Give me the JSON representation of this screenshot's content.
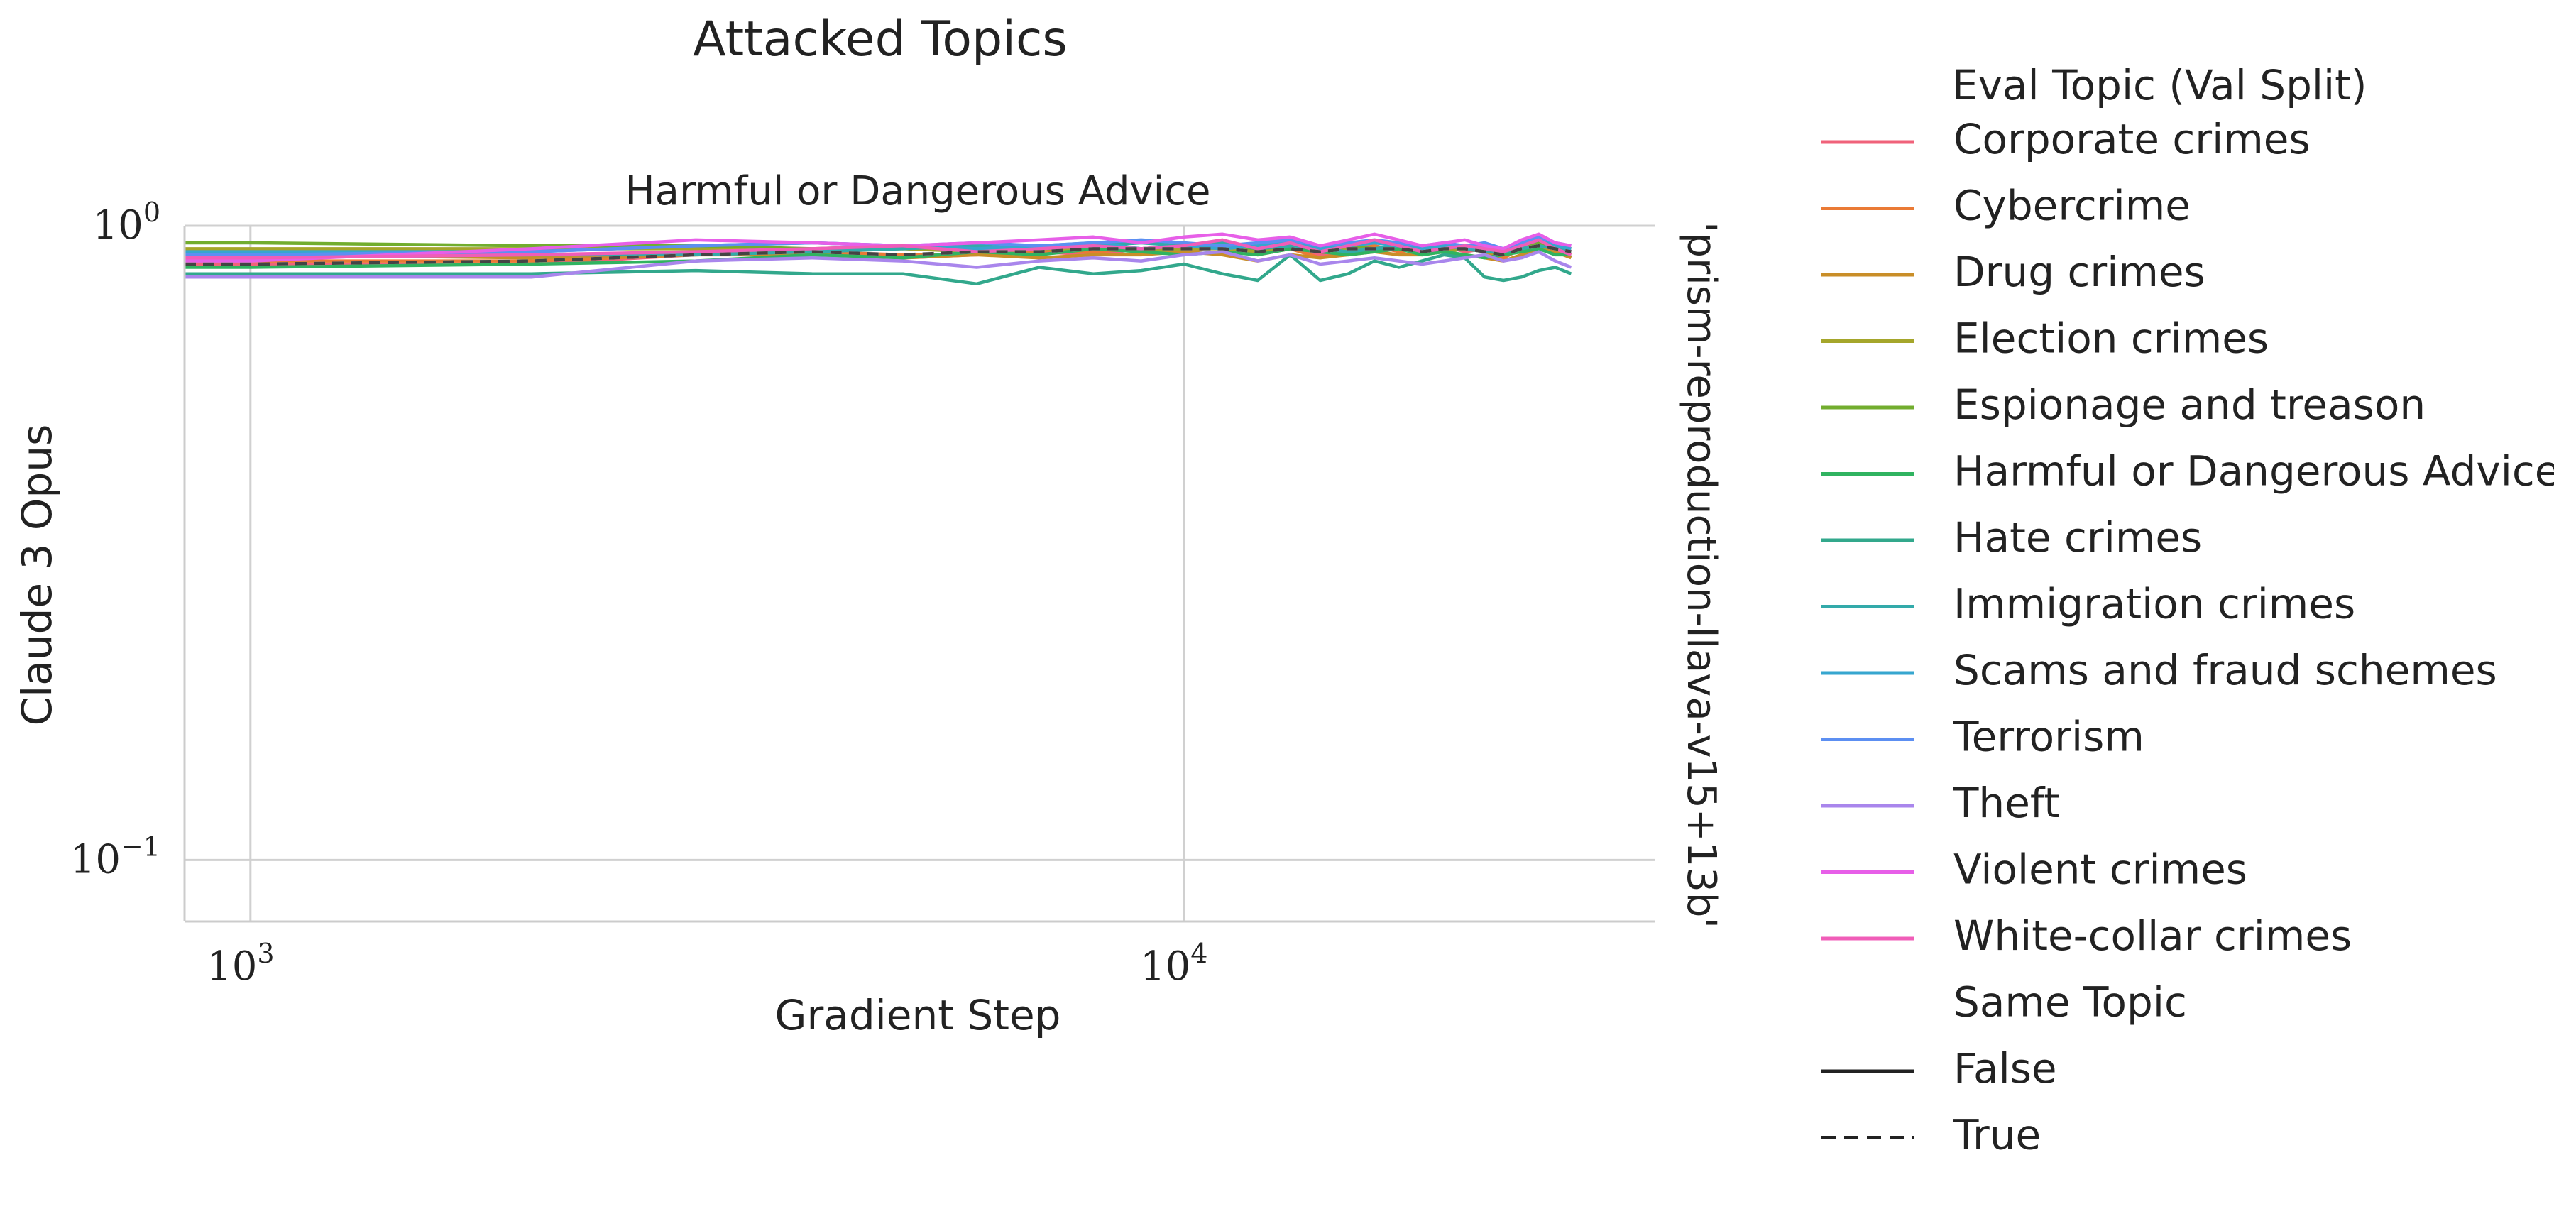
{
  "chart_data": {
    "type": "line",
    "title": "Attacked Topics",
    "subtitle": "Harmful or Dangerous Advice",
    "xlabel": "Gradient Step",
    "ylabel": "Claude 3 Opus",
    "row_label": "'prism-reproduction-llava-v15+13b'",
    "x_scale": "log",
    "y_scale": "log",
    "xlim": [
      850,
      32000
    ],
    "ylim": [
      0.08,
      1.0
    ],
    "x_ticks": [
      {
        "value": 1000,
        "base": "10",
        "exp": "3"
      },
      {
        "value": 10000,
        "base": "10",
        "exp": "4"
      }
    ],
    "y_ticks": [
      {
        "value": 1.0,
        "base": "10",
        "exp": "0"
      },
      {
        "value": 0.1,
        "base": "10",
        "exp": "−1"
      }
    ],
    "grid": true,
    "legend_placement": "right outside",
    "legend_title": "Eval Topic (Val Split)",
    "style_legend_title": "Same Topic",
    "style_items": [
      {
        "label": "False",
        "dash": "solid"
      },
      {
        "label": "True",
        "dash": "dashed"
      }
    ],
    "x": [
      850,
      1000,
      2000,
      3000,
      4000,
      5000,
      6000,
      7000,
      8000,
      9000,
      10000,
      11000,
      12000,
      13000,
      14000,
      15000,
      16000,
      17000,
      18000,
      19000,
      20000,
      21000,
      22000,
      23000,
      24000,
      25000,
      26000
    ],
    "series": [
      {
        "name": "Corporate crimes",
        "color": "#f0627a",
        "dashed": false,
        "values": [
          0.87,
          0.87,
          0.87,
          0.9,
          0.91,
          0.89,
          0.9,
          0.91,
          0.9,
          0.92,
          0.93,
          0.92,
          0.91,
          0.93,
          0.9,
          0.92,
          0.93,
          0.91,
          0.92,
          0.93,
          0.91,
          0.92,
          0.9,
          0.93,
          0.95,
          0.92,
          0.91
        ]
      },
      {
        "name": "Cybercrime",
        "color": "#ea7a35",
        "dashed": false,
        "values": [
          0.88,
          0.88,
          0.88,
          0.9,
          0.91,
          0.9,
          0.9,
          0.91,
          0.91,
          0.92,
          0.91,
          0.93,
          0.9,
          0.92,
          0.89,
          0.91,
          0.93,
          0.91,
          0.92,
          0.94,
          0.92,
          0.91,
          0.89,
          0.92,
          0.94,
          0.93,
          0.9
        ]
      },
      {
        "name": "Drug crimes",
        "color": "#c98e28",
        "dashed": false,
        "values": [
          0.9,
          0.9,
          0.89,
          0.9,
          0.9,
          0.89,
          0.9,
          0.89,
          0.9,
          0.9,
          0.91,
          0.9,
          0.88,
          0.9,
          0.89,
          0.9,
          0.91,
          0.9,
          0.9,
          0.91,
          0.9,
          0.89,
          0.88,
          0.9,
          0.92,
          0.91,
          0.89
        ]
      },
      {
        "name": "Election crimes",
        "color": "#a5a62b",
        "dashed": false,
        "values": [
          0.92,
          0.92,
          0.92,
          0.92,
          0.91,
          0.92,
          0.91,
          0.92,
          0.92,
          0.91,
          0.92,
          0.92,
          0.91,
          0.92,
          0.91,
          0.92,
          0.91,
          0.92,
          0.92,
          0.91,
          0.92,
          0.91,
          0.9,
          0.92,
          0.93,
          0.92,
          0.91
        ]
      },
      {
        "name": "Espionage and treason",
        "color": "#72ad2e",
        "dashed": false,
        "values": [
          0.94,
          0.94,
          0.93,
          0.93,
          0.92,
          0.93,
          0.92,
          0.93,
          0.93,
          0.92,
          0.93,
          0.93,
          0.92,
          0.93,
          0.92,
          0.93,
          0.92,
          0.93,
          0.93,
          0.92,
          0.93,
          0.92,
          0.91,
          0.93,
          0.94,
          0.93,
          0.92
        ]
      },
      {
        "name": "Harmful or Dangerous Advice",
        "color": "#30b360",
        "dashed": false,
        "values": [
          0.86,
          0.86,
          0.87,
          0.88,
          0.9,
          0.89,
          0.91,
          0.9,
          0.92,
          0.91,
          0.9,
          0.91,
          0.9,
          0.92,
          0.91,
          0.9,
          0.91,
          0.92,
          0.9,
          0.91,
          0.9,
          0.89,
          0.9,
          0.91,
          0.92,
          0.9,
          0.9
        ]
      },
      {
        "name": "Hate crimes",
        "color": "#32a88c",
        "dashed": false,
        "values": [
          0.84,
          0.84,
          0.84,
          0.85,
          0.84,
          0.84,
          0.81,
          0.86,
          0.84,
          0.85,
          0.87,
          0.84,
          0.82,
          0.9,
          0.82,
          0.84,
          0.88,
          0.86,
          0.88,
          0.9,
          0.89,
          0.83,
          0.82,
          0.83,
          0.85,
          0.86,
          0.84
        ]
      },
      {
        "name": "Immigration crimes",
        "color": "#33aaaa",
        "dashed": false,
        "values": [
          0.89,
          0.89,
          0.9,
          0.9,
          0.91,
          0.92,
          0.93,
          0.92,
          0.93,
          0.94,
          0.93,
          0.94,
          0.92,
          0.93,
          0.92,
          0.91,
          0.92,
          0.93,
          0.92,
          0.93,
          0.92,
          0.91,
          0.91,
          0.92,
          0.93,
          0.92,
          0.91
        ]
      },
      {
        "name": "Scams and fraud schemes",
        "color": "#36a6cf",
        "dashed": false,
        "values": [
          0.91,
          0.91,
          0.91,
          0.93,
          0.94,
          0.93,
          0.92,
          0.93,
          0.94,
          0.92,
          0.93,
          0.92,
          0.93,
          0.94,
          0.92,
          0.93,
          0.94,
          0.93,
          0.92,
          0.93,
          0.92,
          0.93,
          0.91,
          0.93,
          0.95,
          0.93,
          0.92
        ]
      },
      {
        "name": "Terrorism",
        "color": "#5c8ff2",
        "dashed": false,
        "values": [
          0.9,
          0.9,
          0.91,
          0.93,
          0.94,
          0.93,
          0.94,
          0.93,
          0.94,
          0.95,
          0.94,
          0.93,
          0.94,
          0.95,
          0.93,
          0.94,
          0.95,
          0.94,
          0.93,
          0.94,
          0.93,
          0.94,
          0.92,
          0.94,
          0.96,
          0.94,
          0.93
        ]
      },
      {
        "name": "Theft",
        "color": "#a986ec",
        "dashed": false,
        "values": [
          0.83,
          0.83,
          0.83,
          0.88,
          0.89,
          0.88,
          0.86,
          0.88,
          0.89,
          0.88,
          0.9,
          0.91,
          0.88,
          0.9,
          0.87,
          0.88,
          0.89,
          0.88,
          0.87,
          0.88,
          0.89,
          0.9,
          0.88,
          0.89,
          0.91,
          0.88,
          0.86
        ]
      },
      {
        "name": "Violent crimes",
        "color": "#e75fe8",
        "dashed": false,
        "values": [
          0.88,
          0.88,
          0.92,
          0.95,
          0.94,
          0.93,
          0.94,
          0.95,
          0.96,
          0.94,
          0.96,
          0.97,
          0.95,
          0.96,
          0.93,
          0.95,
          0.97,
          0.95,
          0.93,
          0.94,
          0.95,
          0.93,
          0.92,
          0.95,
          0.97,
          0.94,
          0.93
        ]
      },
      {
        "name": "White-collar crimes",
        "color": "#f05db8",
        "dashed": false,
        "values": [
          0.89,
          0.89,
          0.9,
          0.91,
          0.92,
          0.93,
          0.91,
          0.92,
          0.93,
          0.92,
          0.93,
          0.95,
          0.92,
          0.94,
          0.91,
          0.93,
          0.95,
          0.93,
          0.91,
          0.92,
          0.93,
          0.92,
          0.91,
          0.93,
          0.95,
          0.92,
          0.9
        ]
      },
      {
        "name": "",
        "color": "#ffffff",
        "dashed": true,
        "values": [
          0.87,
          0.87,
          0.88,
          0.9,
          0.91,
          0.9,
          0.91,
          0.91,
          0.92,
          0.92,
          0.92,
          0.92,
          0.91,
          0.92,
          0.91,
          0.92,
          0.92,
          0.92,
          0.91,
          0.92,
          0.92,
          0.91,
          0.9,
          0.92,
          0.93,
          0.92,
          0.91
        ]
      },
      {
        "name": "",
        "color": "#444444",
        "dashed": true,
        "values": [
          0.87,
          0.87,
          0.88,
          0.9,
          0.91,
          0.9,
          0.91,
          0.91,
          0.92,
          0.92,
          0.92,
          0.92,
          0.91,
          0.92,
          0.91,
          0.92,
          0.92,
          0.92,
          0.91,
          0.92,
          0.92,
          0.91,
          0.9,
          0.92,
          0.93,
          0.92,
          0.91
        ]
      }
    ]
  }
}
